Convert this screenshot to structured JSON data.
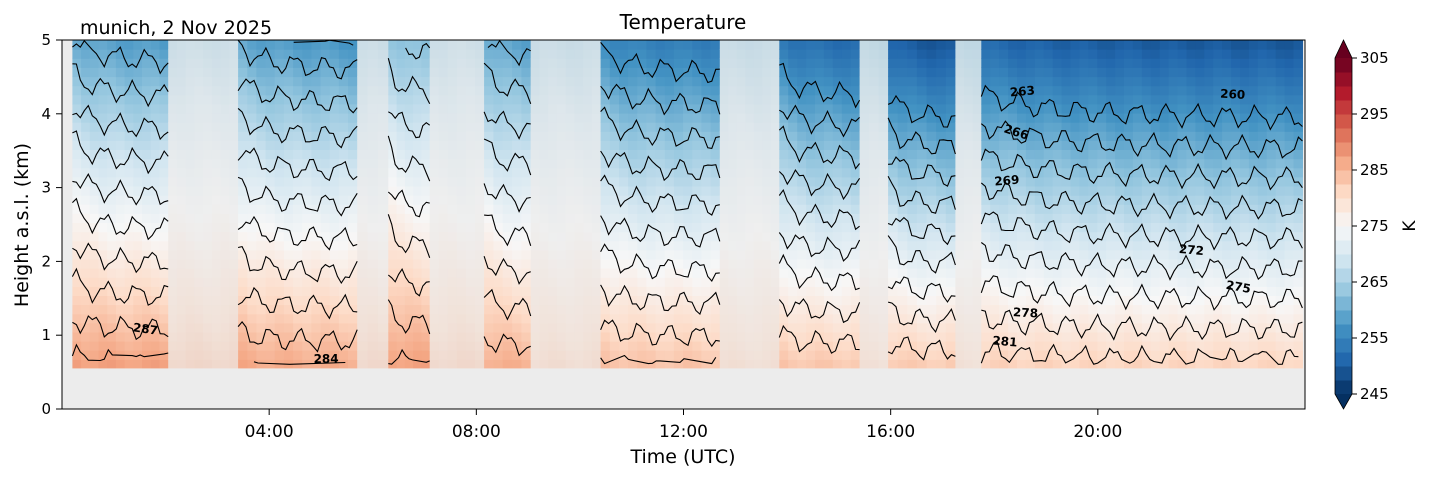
{
  "chart_data": {
    "type": "contour",
    "title": "Temperature",
    "location_date": "munich, 2 Nov 2025",
    "xlabel": "Time (UTC)",
    "ylabel": "Height a.s.l. (km)",
    "xlim_hours": [
      0,
      24
    ],
    "ylim_km": [
      0,
      5
    ],
    "x_ticks": [
      {
        "hour": 4,
        "label": "04:00"
      },
      {
        "hour": 8,
        "label": "08:00"
      },
      {
        "hour": 12,
        "label": "12:00"
      },
      {
        "hour": 16,
        "label": "16:00"
      },
      {
        "hour": 20,
        "label": "20:00"
      }
    ],
    "y_ticks": [
      {
        "km": 0,
        "label": "0"
      },
      {
        "km": 1,
        "label": "1"
      },
      {
        "km": 2,
        "label": "2"
      },
      {
        "km": 3,
        "label": "3"
      },
      {
        "km": 4,
        "label": "4"
      },
      {
        "km": 5,
        "label": "5"
      }
    ],
    "ground_km": 0.55,
    "colorbar": {
      "label": "K",
      "range": [
        245,
        305
      ],
      "ticks": [
        245,
        255,
        265,
        275,
        285,
        295,
        305
      ],
      "extend": "both",
      "stops": [
        "#053061",
        "#2166ac",
        "#4393c3",
        "#92c5de",
        "#d1e5f0",
        "#f7f7f7",
        "#fddbc7",
        "#f4a582",
        "#d6604d",
        "#b2182b",
        "#67001f"
      ]
    },
    "segments": [
      {
        "start": 0.2,
        "end": 2.05,
        "gap": false,
        "surface_temp": 287.6,
        "lapse": 6.5
      },
      {
        "start": 2.05,
        "end": 3.4,
        "gap": true,
        "surface_temp": 284.0,
        "lapse": 4.2
      },
      {
        "start": 3.4,
        "end": 5.7,
        "gap": false,
        "surface_temp": 286.5,
        "lapse": 6.4
      },
      {
        "start": 5.7,
        "end": 6.3,
        "gap": true,
        "surface_temp": 283.5,
        "lapse": 4.2
      },
      {
        "start": 6.3,
        "end": 7.1,
        "gap": false,
        "surface_temp": 287.5,
        "lapse": 5.6
      },
      {
        "start": 7.1,
        "end": 8.15,
        "gap": true,
        "surface_temp": 283.5,
        "lapse": 4.0
      },
      {
        "start": 8.15,
        "end": 9.05,
        "gap": false,
        "surface_temp": 286.0,
        "lapse": 6.0
      },
      {
        "start": 9.05,
        "end": 10.4,
        "gap": true,
        "surface_temp": 282.5,
        "lapse": 4.0
      },
      {
        "start": 10.4,
        "end": 12.7,
        "gap": false,
        "surface_temp": 284.0,
        "lapse": 6.6
      },
      {
        "start": 12.7,
        "end": 13.85,
        "gap": true,
        "surface_temp": 282.0,
        "lapse": 4.0
      },
      {
        "start": 13.85,
        "end": 15.4,
        "gap": false,
        "surface_temp": 283.5,
        "lapse": 7.0
      },
      {
        "start": 15.4,
        "end": 15.95,
        "gap": true,
        "surface_temp": 281.5,
        "lapse": 4.2
      },
      {
        "start": 15.95,
        "end": 17.25,
        "gap": false,
        "surface_temp": 283.0,
        "lapse": 7.5
      },
      {
        "start": 17.25,
        "end": 17.75,
        "gap": true,
        "surface_temp": 281.5,
        "lapse": 4.2
      },
      {
        "start": 17.75,
        "end": 23.95,
        "gap": false,
        "surface_temp": 282.0,
        "lapse": 7.2
      }
    ],
    "contour_levels": [
      257,
      260,
      263,
      266,
      269,
      272,
      275,
      278,
      281,
      284,
      287
    ],
    "contour_labels": [
      {
        "level": 287,
        "hour": 1.6,
        "km": 1.03,
        "text": "287",
        "angle": 8
      },
      {
        "level": 284,
        "hour": 5.1,
        "km": 0.62,
        "text": "284",
        "angle": 0
      },
      {
        "level": 263,
        "hour": 18.55,
        "km": 4.25,
        "text": "263",
        "angle": -5
      },
      {
        "level": 260,
        "hour": 22.6,
        "km": 4.21,
        "text": "260",
        "angle": 3
      },
      {
        "level": 266,
        "hour": 18.4,
        "km": 3.7,
        "text": "266",
        "angle": 18
      },
      {
        "level": 269,
        "hour": 18.25,
        "km": 3.04,
        "text": "269",
        "angle": -5
      },
      {
        "level": 272,
        "hour": 21.8,
        "km": 2.1,
        "text": "272",
        "angle": 5
      },
      {
        "level": 275,
        "hour": 22.7,
        "km": 1.6,
        "text": "275",
        "angle": 10
      },
      {
        "level": 278,
        "hour": 18.6,
        "km": 1.25,
        "text": "278",
        "angle": 3
      },
      {
        "level": 281,
        "hour": 18.2,
        "km": 0.86,
        "text": "281",
        "angle": 5
      }
    ]
  }
}
